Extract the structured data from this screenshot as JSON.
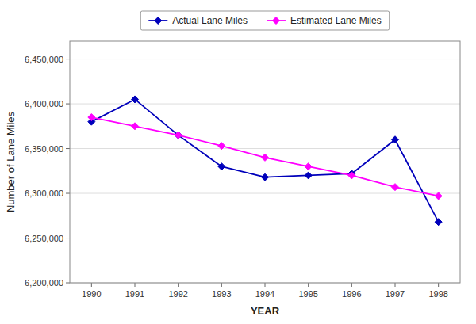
{
  "chart_data": {
    "type": "line",
    "x_label": "YEAR",
    "y_label": "Number of Lane Miles",
    "x": [
      1990,
      1991,
      1992,
      1993,
      1994,
      1995,
      1996,
      1997,
      1998
    ],
    "xlim": [
      1989.5,
      1998.5
    ],
    "xticks": [
      1990,
      1991,
      1992,
      1993,
      1994,
      1995,
      1996,
      1997,
      1998
    ],
    "ylim": [
      6200000,
      6470000
    ],
    "yticks": [
      {
        "value": 6200000,
        "label": "6,200,000"
      },
      {
        "value": 6250000,
        "label": "6,250,000"
      },
      {
        "value": 6300000,
        "label": "6,300,000"
      },
      {
        "value": 6350000,
        "label": "6,350,000"
      },
      {
        "value": 6400000,
        "label": "6,400,000"
      },
      {
        "value": 6450000,
        "label": "6,450,000"
      }
    ],
    "grid": true,
    "legend": "top",
    "series": [
      {
        "name": "Actual Lane Miles",
        "color": "#0000BB",
        "marker": "diamond",
        "values": [
          6380000,
          6405000,
          6365000,
          6330000,
          6318000,
          6320000,
          6322000,
          6360000,
          6268000
        ]
      },
      {
        "name": "Estimated Lane Miles",
        "color": "#FF00FF",
        "marker": "diamond",
        "values": [
          6385000,
          6375000,
          6365000,
          6353000,
          6340000,
          6330000,
          6320000,
          6307000,
          6297000
        ]
      }
    ]
  }
}
